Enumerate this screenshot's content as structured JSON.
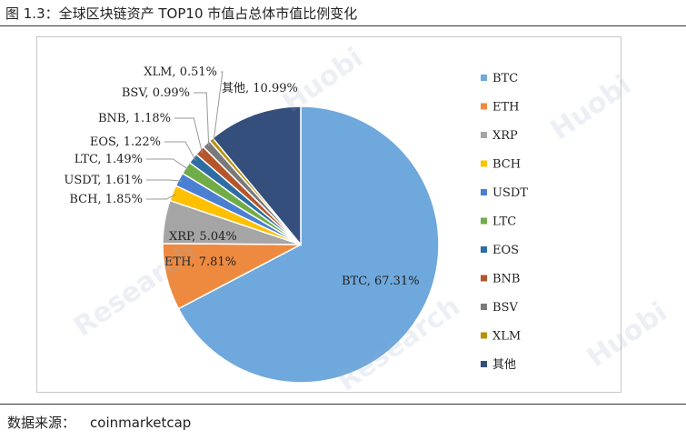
{
  "figure": {
    "title": "图 1.3：全球区块链资产 TOP10 市值占总体市值比例变化",
    "source_label": "数据来源：",
    "source_value": "coinmarketcap"
  },
  "watermark": {
    "text_a": "Huobi",
    "text_b": "Research"
  },
  "chart_data": {
    "type": "pie",
    "title": "",
    "legend_position": "right",
    "start_angle_deg": 0,
    "direction": "clockwise",
    "slices": [
      {
        "name": "BTC",
        "value": 67.31,
        "label": "BTC, 67.31%",
        "color": "#6fa8dc"
      },
      {
        "name": "ETH",
        "value": 7.81,
        "label": "ETH, 7.81%",
        "color": "#ed8a3f"
      },
      {
        "name": "XRP",
        "value": 5.04,
        "label": "XRP, 5.04%",
        "color": "#a5a5a5"
      },
      {
        "name": "BCH",
        "value": 1.85,
        "label": "BCH, 1.85%",
        "color": "#ffc000"
      },
      {
        "name": "USDT",
        "value": 1.61,
        "label": "USDT, 1.61%",
        "color": "#4a7fd1"
      },
      {
        "name": "LTC",
        "value": 1.49,
        "label": "LTC, 1.49%",
        "color": "#70ad47"
      },
      {
        "name": "EOS",
        "value": 1.22,
        "label": "EOS, 1.22%",
        "color": "#2e6da4"
      },
      {
        "name": "BNB",
        "value": 1.18,
        "label": "BNB, 1.18%",
        "color": "#b5562a"
      },
      {
        "name": "BSV",
        "value": 0.99,
        "label": "BSV, 0.99%",
        "color": "#7a7a7a"
      },
      {
        "name": "XLM",
        "value": 0.51,
        "label": "XLM, 0.51%",
        "color": "#b8900a"
      },
      {
        "name": "其他",
        "value": 10.99,
        "label": "其他, 10.99%",
        "color": "#344f7c"
      }
    ]
  }
}
